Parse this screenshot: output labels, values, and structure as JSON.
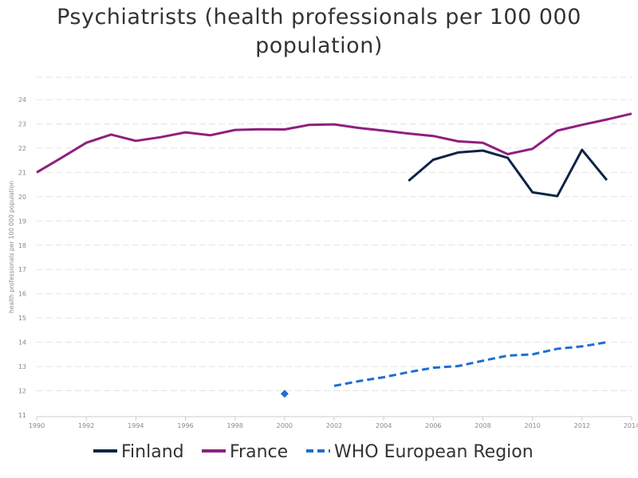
{
  "chart_data": {
    "type": "line",
    "title": "Psychiatrists (health professionals per 100 000 population)",
    "ylabel": "health professionals per 100 000 population",
    "xlabel": "",
    "xlim": [
      1990,
      2014
    ],
    "ylim": [
      11,
      24
    ],
    "x_ticks": [
      "1990",
      "1992",
      "1994",
      "1996",
      "1998",
      "2000",
      "2002",
      "2004",
      "2006",
      "2008",
      "2010",
      "2012",
      "2014"
    ],
    "y_ticks": [
      "11",
      "12",
      "13",
      "14",
      "15",
      "16",
      "17",
      "18",
      "19",
      "20",
      "21",
      "22",
      "23",
      "24"
    ],
    "grid": true,
    "legend_position": "bottom",
    "series": [
      {
        "name": "Finland",
        "color": "#0d2347",
        "dash": "solid",
        "points": [
          [
            2005,
            20.65
          ],
          [
            2006,
            21.52
          ],
          [
            2007,
            21.82
          ],
          [
            2008,
            21.9
          ],
          [
            2009,
            21.6
          ],
          [
            2010,
            20.18
          ],
          [
            2011,
            20.02
          ],
          [
            2012,
            21.93
          ],
          [
            2013,
            20.68
          ]
        ]
      },
      {
        "name": "France",
        "color": "#8f1f7f",
        "dash": "solid",
        "points": [
          [
            1990,
            21.0
          ],
          [
            1991,
            21.6
          ],
          [
            1992,
            22.22
          ],
          [
            1993,
            22.56
          ],
          [
            1994,
            22.3
          ],
          [
            1995,
            22.45
          ],
          [
            1996,
            22.65
          ],
          [
            1997,
            22.53
          ],
          [
            1998,
            22.75
          ],
          [
            1999,
            22.78
          ],
          [
            2000,
            22.77
          ],
          [
            2001,
            22.96
          ],
          [
            2002,
            22.98
          ],
          [
            2003,
            22.83
          ],
          [
            2004,
            22.72
          ],
          [
            2005,
            22.6
          ],
          [
            2006,
            22.5
          ],
          [
            2007,
            22.28
          ],
          [
            2008,
            22.22
          ],
          [
            2009,
            21.75
          ],
          [
            2010,
            21.97
          ],
          [
            2011,
            22.72
          ],
          [
            2012,
            22.96
          ],
          [
            2013,
            23.18
          ],
          [
            2014,
            23.42
          ]
        ]
      },
      {
        "name": "WHO European Region",
        "color": "#1f6dd1",
        "dash": "dashed",
        "points": [
          [
            2000,
            11.88
          ],
          [
            2002,
            12.2
          ],
          [
            2003,
            12.4
          ],
          [
            2004,
            12.56
          ],
          [
            2005,
            12.77
          ],
          [
            2006,
            12.95
          ],
          [
            2007,
            13.02
          ],
          [
            2008,
            13.24
          ],
          [
            2009,
            13.45
          ],
          [
            2010,
            13.5
          ],
          [
            2011,
            13.73
          ],
          [
            2012,
            13.83
          ],
          [
            2013,
            14.0
          ]
        ]
      }
    ]
  }
}
